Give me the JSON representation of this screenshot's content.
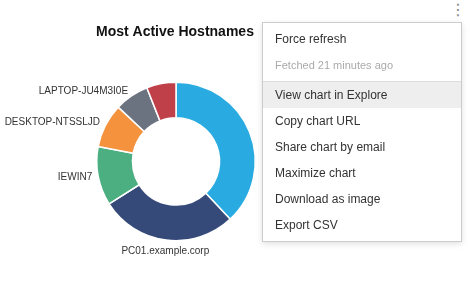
{
  "chart_data": {
    "type": "doughnut",
    "title": "Most Active Hostnames",
    "categories": [
      null,
      "PC01.example.corp",
      "IEWIN7",
      "DESKTOP-NTSSLJD",
      "LAPTOP-JU4M3I0E",
      null
    ],
    "values": [
      38,
      28,
      12,
      9,
      7,
      6
    ],
    "colors": [
      "#29abe2",
      "#364a7a",
      "#4caf82",
      "#f5923e",
      "#6b7280",
      "#c0404a"
    ],
    "annotations": [
      "⋮",
      "Force refresh",
      "Fetched 21 minutes ago",
      "View chart in Explore",
      "Copy chart URL",
      "Share chart by email",
      "Maximize chart",
      "Download as image",
      "Export CSV"
    ]
  }
}
